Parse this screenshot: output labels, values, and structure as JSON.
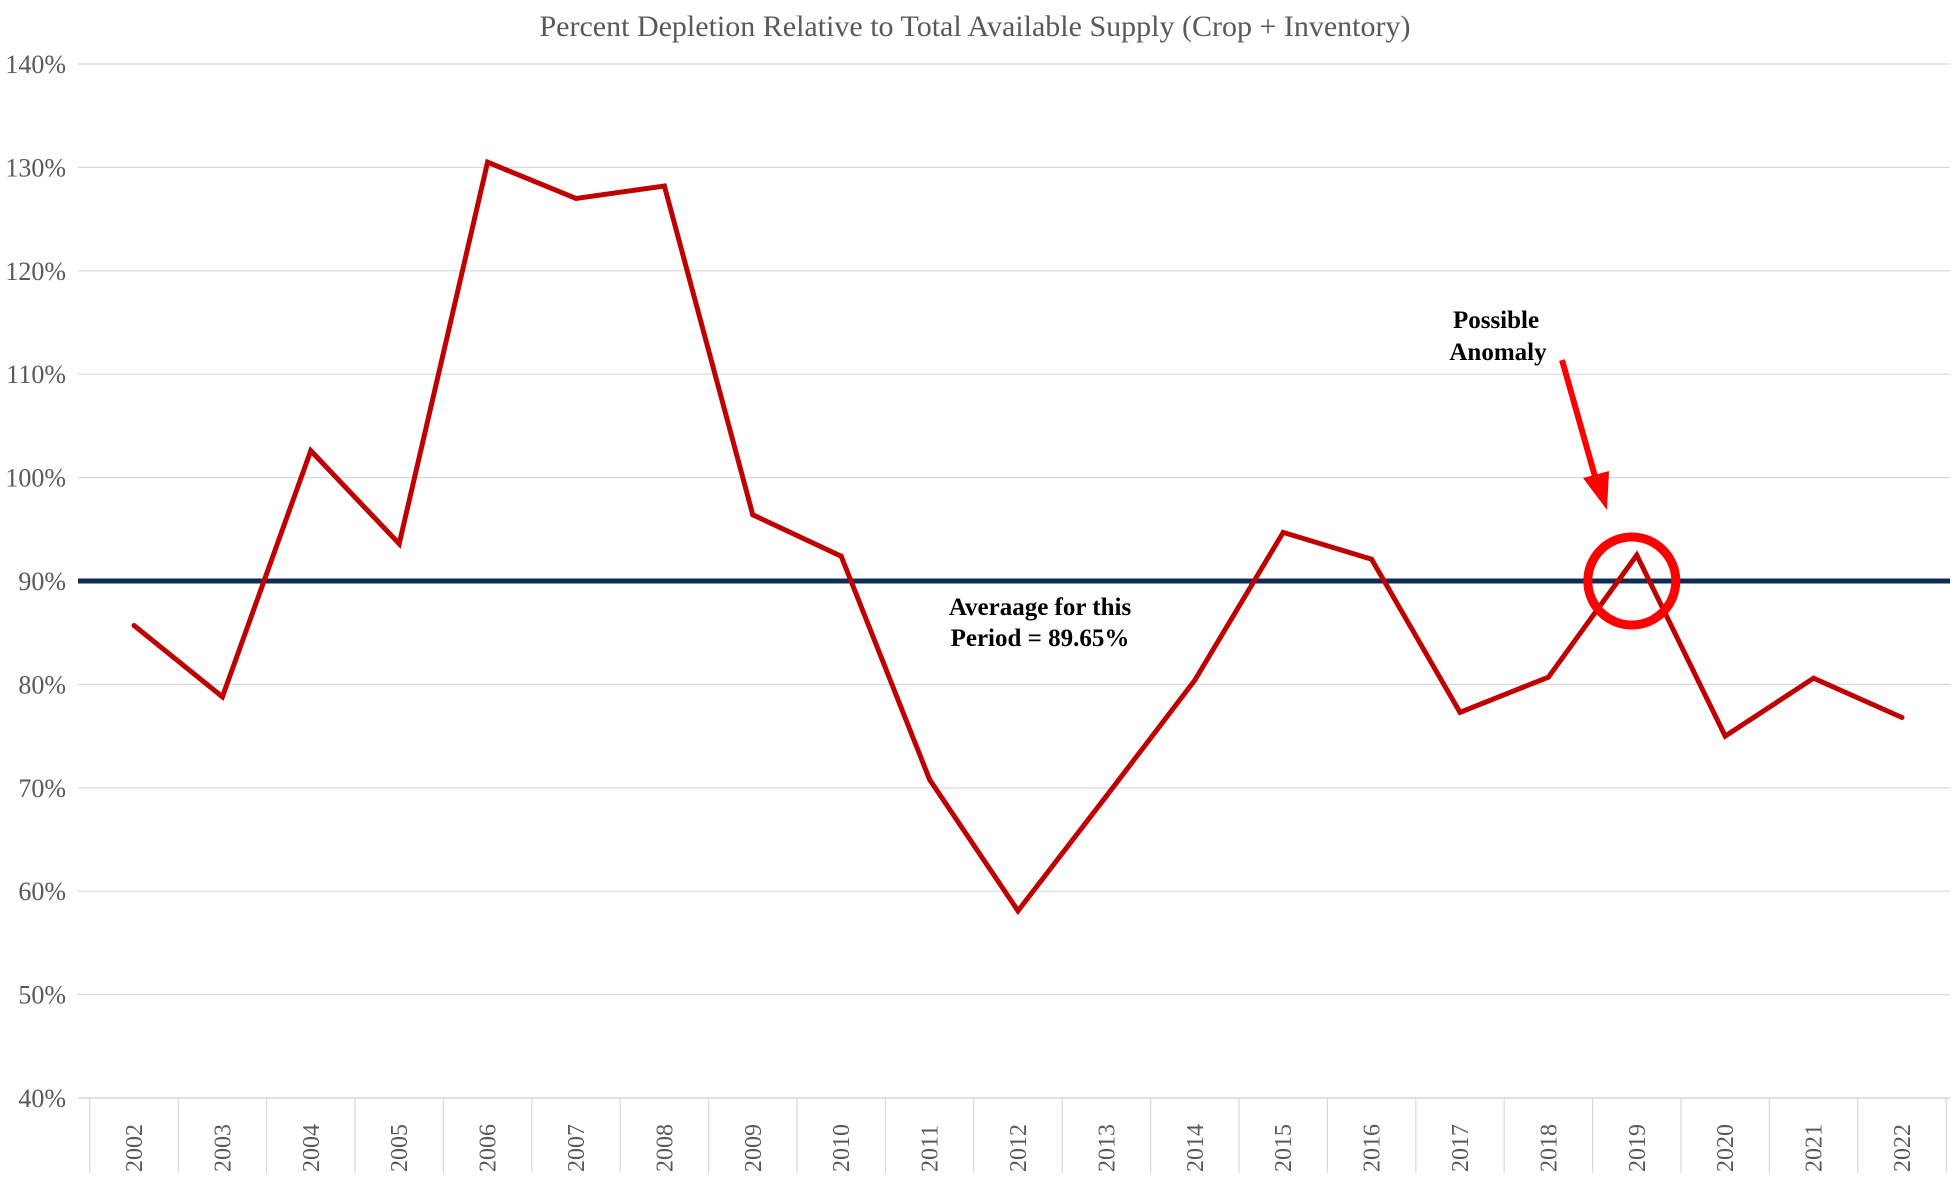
{
  "chart_data": {
    "type": "line",
    "title": "Percent Depletion Relative to Total Available Supply (Crop + Inventory)",
    "xlabel": "",
    "ylabel": "",
    "ylim": [
      40,
      140
    ],
    "y_ticks": [
      40,
      50,
      60,
      70,
      80,
      90,
      100,
      110,
      120,
      130,
      140
    ],
    "y_tick_labels": [
      "40%",
      "50%",
      "60%",
      "70%",
      "80%",
      "90%",
      "100%",
      "110%",
      "120%",
      "130%",
      "140%"
    ],
    "grid": true,
    "categories": [
      "2002",
      "2003",
      "2004",
      "2005",
      "2006",
      "2007",
      "2008",
      "2009",
      "2010",
      "2011",
      "2012",
      "2013",
      "2014",
      "2015",
      "2016",
      "2017",
      "2018",
      "2019",
      "2020",
      "2021",
      "2022"
    ],
    "series": [
      {
        "name": "Percent Depletion",
        "color": "#c00000",
        "values": [
          85.7,
          78.8,
          102.6,
          93.6,
          130.5,
          127.0,
          128.2,
          96.4,
          92.4,
          70.8,
          58.1,
          69.2,
          80.4,
          94.7,
          92.1,
          77.3,
          80.7,
          92.5,
          75.0,
          80.6,
          76.8
        ]
      }
    ],
    "reference_line": {
      "value": 90.0,
      "color": "#0f2d52"
    },
    "annotations": [
      {
        "id": "average",
        "lines": [
          "Averaage for this",
          "Period = 89.65%"
        ]
      },
      {
        "id": "anomaly",
        "lines": [
          "Possible",
          "Anomaly"
        ],
        "target": "2019",
        "color": "#ff0000"
      }
    ]
  }
}
